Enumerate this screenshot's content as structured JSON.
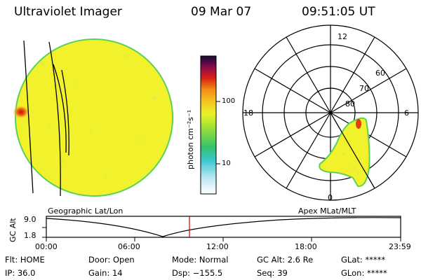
{
  "header": {
    "title": "Ultraviolet Imager",
    "date": "09 Mar 07",
    "time": "09:51:05 UT"
  },
  "colorbar": {
    "unit_label": "photon cm⁻²s⁻¹",
    "ticks": [
      "100",
      "10"
    ]
  },
  "polar_plot": {
    "hour_labels": {
      "top": "12",
      "left": "18",
      "right": "6",
      "bottom": "0"
    },
    "lat_labels": [
      "60",
      "70",
      "80"
    ]
  },
  "panel_labels": {
    "left": "Geographic Lat/Lon",
    "right": "Apex MLat/MLT"
  },
  "altitude_plot": {
    "y_label": "GC Alt",
    "y_ticks": [
      "9.0",
      "1.8"
    ],
    "x_ticks": [
      "00:00",
      "06:00",
      "12:00",
      "18:00",
      "23:59"
    ]
  },
  "status": {
    "flt": "Flt: HOME",
    "door": "Door: Open",
    "mode": "Mode: Normal",
    "gc_alt": "GC Alt: 2.6 Re",
    "glat": "GLat: *****",
    "ip": "IP: 36.0",
    "gain": "Gain: 14",
    "dsp": "Dsp: −155.5",
    "seq": "Seq: 39",
    "glon": "GLon: *****"
  },
  "colors": {
    "disk_fill": "#f2f22c",
    "disk_edge": "#5ad25a",
    "hotspot": "#e03010",
    "marker": "#cc0000"
  }
}
